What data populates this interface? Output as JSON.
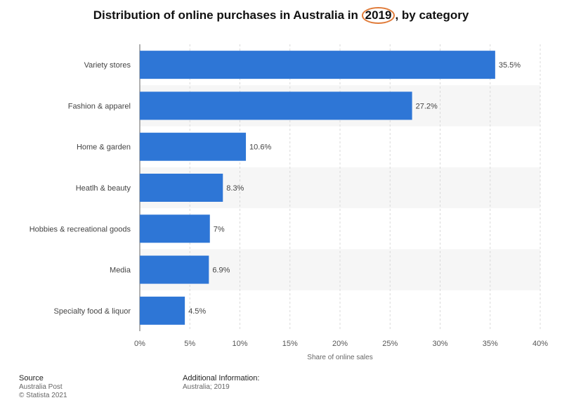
{
  "chart_data": {
    "type": "bar",
    "orientation": "horizontal",
    "title_prefix": "Distribution of online purchases in Australia in ",
    "title_highlight": "2019",
    "title_suffix": ", by category",
    "categories": [
      "Variety stores",
      "Fashion & apparel",
      "Home & garden",
      "Heatlh & beauty",
      "Hobbies & recreational goods",
      "Media",
      "Specialty food & liquor"
    ],
    "values": [
      35.5,
      27.2,
      10.6,
      8.3,
      7,
      6.9,
      4.5
    ],
    "value_labels": [
      "35.5%",
      "27.2%",
      "10.6%",
      "8.3%",
      "7%",
      "6.9%",
      "4.5%"
    ],
    "xlabel": "Share of online sales",
    "ylabel": "",
    "xlim": [
      0,
      40
    ],
    "xticks": [
      0,
      5,
      10,
      15,
      20,
      25,
      30,
      35,
      40
    ],
    "xtick_labels": [
      "0%",
      "5%",
      "10%",
      "15%",
      "20%",
      "25%",
      "30%",
      "35%",
      "40%"
    ],
    "grid": true,
    "legend": "none",
    "colors": {
      "bar": "#2e76d6",
      "stripe": "#f6f6f6",
      "grid": "#d9d9d9",
      "axis": "#666666",
      "highlight_circle": "#e07b39"
    }
  },
  "footer": {
    "source_heading": "Source",
    "source_lines": [
      "Australia Post",
      "© Statista 2021"
    ],
    "info_heading": "Additional Information:",
    "info_lines": [
      "Australia; 2019"
    ]
  }
}
